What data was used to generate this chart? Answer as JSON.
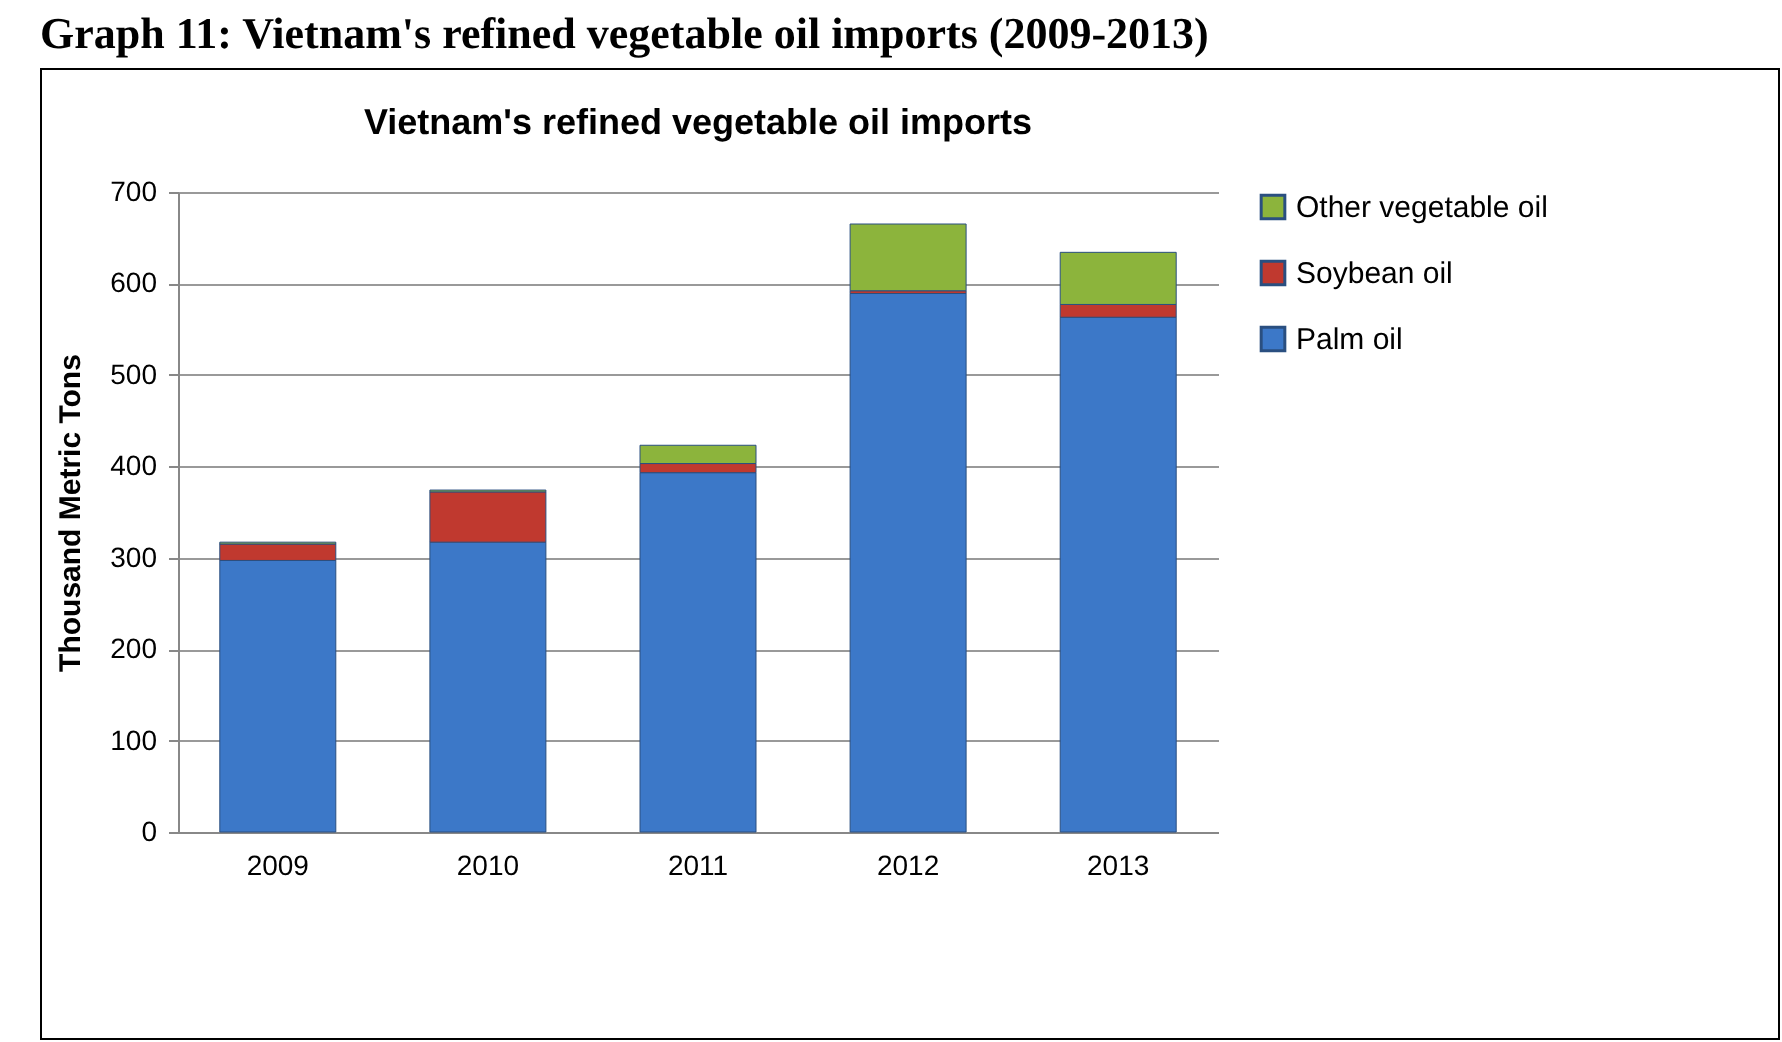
{
  "chart_data": {
    "type": "bar",
    "title": "Graph 11: Vietnam's refined vegetable oil imports (2009-2013)",
    "subtitle": "Vietnam's refined vegetable oil imports",
    "ylabel": "Thousand Metric Tons",
    "categories": [
      "2009",
      "2010",
      "2011",
      "2012",
      "2013"
    ],
    "series": [
      {
        "name": "Palm oil",
        "color": "#3c78c8",
        "values": [
          297,
          317,
          393,
          589,
          563
        ]
      },
      {
        "name": "Soybean oil",
        "color": "#c0392f",
        "values": [
          18,
          55,
          10,
          3,
          14
        ]
      },
      {
        "name": "Other vegetable oil",
        "color": "#8cb43c",
        "values": [
          2,
          2,
          20,
          73,
          57
        ]
      }
    ],
    "stacked": true,
    "ylim": [
      0,
      700
    ],
    "yticks": [
      0,
      100,
      200,
      300,
      400,
      500,
      600,
      700
    ],
    "grid": "y",
    "legend": "right"
  }
}
